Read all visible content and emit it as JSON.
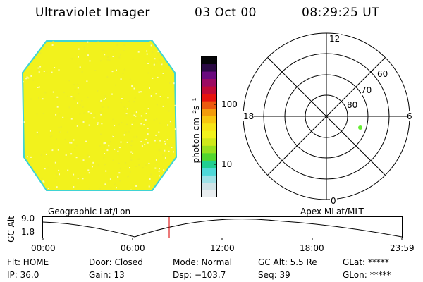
{
  "header": {
    "instrument": "Ultraviolet Imager",
    "date": "03 Oct 00",
    "time": "08:29:25 UT"
  },
  "image_panel": {
    "fill_color": "#f2f21c",
    "edge_color": "#3fd4d4"
  },
  "colorbar": {
    "unit_label": "photon cm⁻²s⁻¹",
    "tick_labels": [
      "100",
      "10"
    ],
    "tick_values": [
      100,
      10
    ],
    "colors": [
      "#e9eef0",
      "#cfe3e6",
      "#9ee1e6",
      "#4fd8d8",
      "#21cf91",
      "#52d62e",
      "#98e01e",
      "#cfe81a",
      "#f2f21c",
      "#f7e416",
      "#f8c60f",
      "#f39b0c",
      "#ec5a0e",
      "#e7130e",
      "#c10a36",
      "#9c0a62",
      "#6a0a7f",
      "#2a0944",
      "#050508"
    ]
  },
  "polar_plot": {
    "mlt_labels": [
      "12",
      "18",
      "6",
      "0"
    ],
    "lat_labels": [
      "80",
      "70",
      "60"
    ],
    "point_color": "#66ee33"
  },
  "timeline": {
    "y_axis_label": "GC Alt",
    "y_ticks": [
      "9.0",
      "1.8"
    ],
    "left_title": "Geographic Lat/Lon",
    "right_title": "Apex MLat/MLT",
    "x_ticks": [
      "00:00",
      "06:00",
      "12:00",
      "18:00",
      "23:59"
    ],
    "marker_color": "#e02020"
  },
  "status": {
    "row1": [
      "Flt: HOME",
      "Door: Closed",
      "Mode: Normal",
      "GC Alt: 5.5 Re",
      "GLat: *****"
    ],
    "row2": [
      "IP: 36.0",
      "Gain: 13",
      "Dsp: −103.7",
      "Seq: 39",
      "GLon: *****"
    ]
  }
}
